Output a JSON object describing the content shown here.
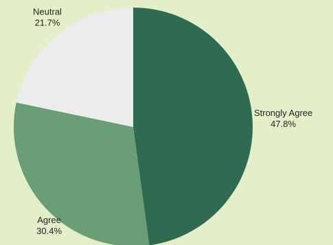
{
  "chart_data": {
    "type": "pie",
    "title": "",
    "start_angle_deg": 0,
    "direction": "clockwise",
    "slices": [
      {
        "label": "Strongly Agree",
        "value": 47.8,
        "value_label": "47.8%",
        "color": "#2e6b50"
      },
      {
        "label": "Agree",
        "value": 30.4,
        "value_label": "30.4%",
        "color": "#699e77"
      },
      {
        "label": "Neutral",
        "value": 21.7,
        "value_label": "21.7%",
        "color": "#ececec"
      }
    ]
  },
  "colors": {
    "background": "#e3efc8",
    "text": "#222222"
  }
}
